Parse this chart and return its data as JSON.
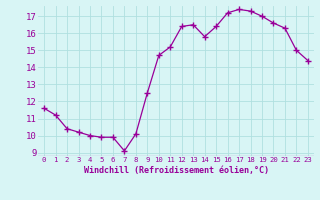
{
  "x": [
    0,
    1,
    2,
    3,
    4,
    5,
    6,
    7,
    8,
    9,
    10,
    11,
    12,
    13,
    14,
    15,
    16,
    17,
    18,
    19,
    20,
    21,
    22,
    23
  ],
  "y": [
    11.6,
    11.2,
    10.4,
    10.2,
    10.0,
    9.9,
    9.9,
    9.1,
    10.1,
    12.5,
    14.7,
    15.2,
    16.4,
    16.5,
    15.8,
    16.4,
    17.2,
    17.4,
    17.3,
    17.0,
    16.6,
    16.3,
    15.0,
    14.4
  ],
  "line_color": "#990099",
  "marker": "+",
  "marker_size": 4,
  "marker_linewidth": 1.0,
  "background_color": "#d8f5f5",
  "grid_color": "#b0e0e0",
  "xlabel": "Windchill (Refroidissement éolien,°C)",
  "tick_color": "#990099",
  "ylim": [
    8.8,
    17.6
  ],
  "xlim": [
    -0.5,
    23.5
  ],
  "yticks": [
    9,
    10,
    11,
    12,
    13,
    14,
    15,
    16,
    17
  ],
  "xticks": [
    0,
    1,
    2,
    3,
    4,
    5,
    6,
    7,
    8,
    9,
    10,
    11,
    12,
    13,
    14,
    15,
    16,
    17,
    18,
    19,
    20,
    21,
    22,
    23
  ]
}
